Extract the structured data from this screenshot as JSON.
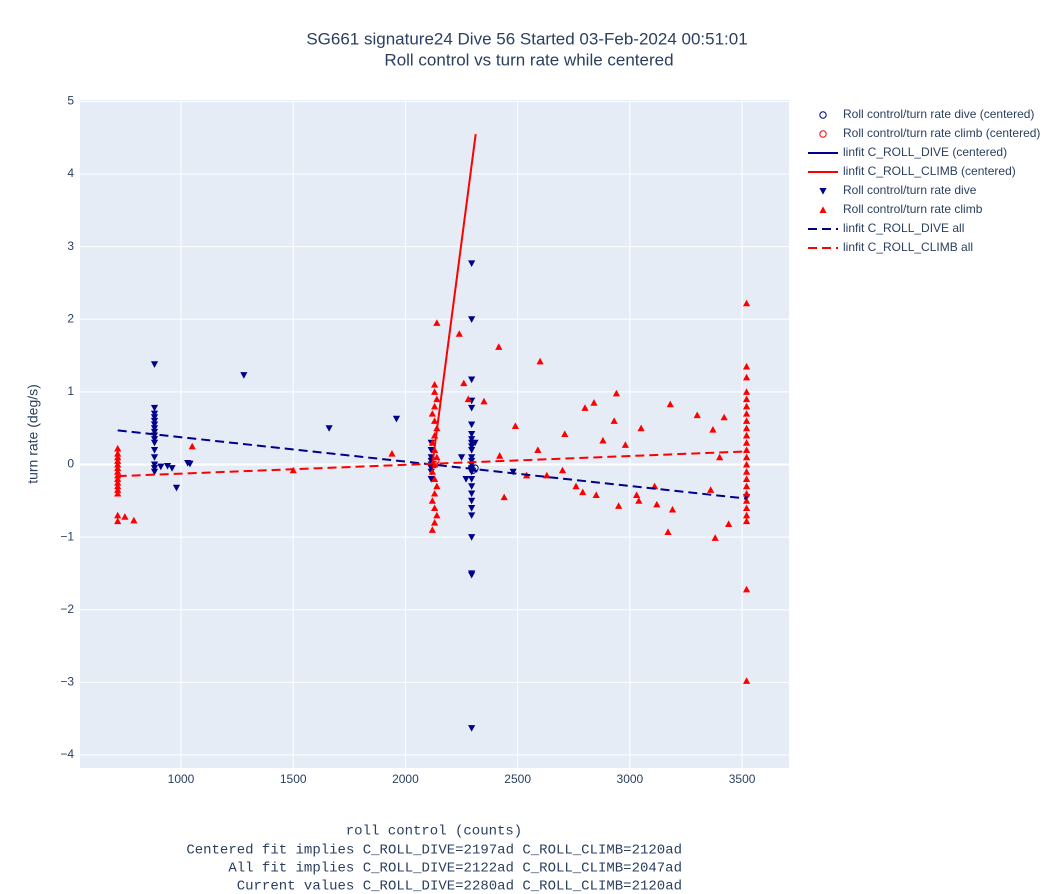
{
  "chart_data": {
    "type": "scatter",
    "title": "SG661 signature24 Dive 56 Started 03-Feb-2024 00:51:01",
    "subtitle": "Roll control vs turn rate while centered",
    "xlabel": "roll control (counts)",
    "notes": [
      "Centered fit implies C_ROLL_DIVE=2197ad C_ROLL_CLIMB=2120ad",
      "All fit implies C_ROLL_DIVE=2122ad C_ROLL_CLIMB=2047ad",
      "Current values C_ROLL_DIVE=2280ad C_ROLL_CLIMB=2120ad"
    ],
    "ylabel": "turn rate (deg/s)",
    "xlim": [
      550,
      3709
    ],
    "ylim": [
      -4.18,
      5.02
    ],
    "xticks": [
      1000,
      1500,
      2000,
      2500,
      3000,
      3500
    ],
    "yticks": [
      {
        "value": -4,
        "label": "−4"
      },
      {
        "value": -3,
        "label": "−3"
      },
      {
        "value": -2,
        "label": "−2"
      },
      {
        "value": -1,
        "label": "−1"
      },
      0,
      1,
      2,
      3,
      4,
      5
    ],
    "grid": true,
    "legend": "right",
    "series": [
      {
        "name": "Roll control/turn rate dive (centered)",
        "color": "#00008b",
        "mode": "markers",
        "symbol": "circle-open",
        "x": [
          2300,
          2310
        ],
        "values": [
          -0.08,
          -0.05
        ]
      },
      {
        "name": "Roll control/turn rate climb (centered)",
        "color": "#ff0000",
        "mode": "markers",
        "symbol": "circle-open",
        "x": [
          2130,
          2135
        ],
        "values": [
          0.0,
          0.05
        ]
      },
      {
        "name": "linfit C_ROLL_DIVE (centered)",
        "color": "#00008b",
        "mode": "lines",
        "dash": "solid",
        "x": [
          2280,
          2320
        ],
        "values": [
          -0.03,
          -0.1
        ]
      },
      {
        "name": "linfit C_ROLL_CLIMB (centered)",
        "color": "#ff0000",
        "mode": "lines",
        "dash": "solid",
        "x": [
          2120,
          2313
        ],
        "values": [
          0,
          4.55
        ]
      },
      {
        "name": "Roll control/turn rate dive",
        "color": "#00008b",
        "mode": "markers",
        "symbol": "triangle-down",
        "x": [
          882,
          882,
          882,
          882,
          882,
          882,
          882,
          882,
          882,
          882,
          882,
          882,
          882,
          882,
          882,
          882,
          1280,
          1660,
          1960,
          940,
          960,
          980,
          1030,
          1040,
          910,
          2115,
          2115,
          2115,
          2115,
          2115,
          2115,
          2115,
          2115,
          2295,
          2295,
          2295,
          2295,
          2295,
          2295,
          2295,
          2295,
          2295,
          2295,
          2295,
          2295,
          2295,
          2295,
          2295,
          2295,
          2295,
          2295,
          2295,
          2295,
          2295,
          2295,
          2295,
          2295,
          2295,
          2295,
          2250,
          2270,
          2310,
          2480,
          3520
        ],
        "values": [
          1.38,
          0.78,
          0.7,
          0.65,
          0.6,
          0.55,
          0.5,
          0.45,
          0.4,
          0.35,
          0.3,
          0.2,
          0.1,
          0.0,
          -0.05,
          -0.1,
          1.23,
          0.5,
          0.63,
          -0.02,
          -0.05,
          -0.32,
          0.02,
          0.01,
          -0.03,
          0.3,
          0.2,
          0.1,
          0.05,
          0,
          -0.05,
          -0.1,
          -0.2,
          2.77,
          2.0,
          1.17,
          0.88,
          0.78,
          0.55,
          0.42,
          0.35,
          0.3,
          0.25,
          0.2,
          0.1,
          0.05,
          0,
          -0.05,
          -0.1,
          -0.2,
          -0.3,
          -0.4,
          -0.5,
          -0.6,
          -0.7,
          -1.0,
          -1.5,
          -1.52,
          -3.63,
          0.1,
          -0.2,
          0.3,
          -0.1,
          -0.45
        ]
      },
      {
        "name": "Roll control/turn rate climb",
        "color": "#ff0000",
        "mode": "markers",
        "symbol": "triangle-up",
        "x": [
          718,
          718,
          718,
          718,
          718,
          718,
          718,
          718,
          718,
          718,
          718,
          718,
          718,
          718,
          718,
          750,
          790,
          1050,
          1500,
          1940,
          2140,
          2130,
          2130,
          2140,
          2130,
          2120,
          2130,
          2140,
          2130,
          2120,
          2130,
          2140,
          2130,
          2120,
          2130,
          2140,
          2130,
          2120,
          2130,
          2140,
          2130,
          2120,
          2240,
          2260,
          2416,
          2350,
          2280,
          2440,
          2420,
          2490,
          2540,
          2590,
          2600,
          2630,
          2710,
          2700,
          2760,
          2790,
          2800,
          2840,
          2850,
          2880,
          2940,
          2950,
          2930,
          2980,
          3030,
          3050,
          3040,
          3110,
          3120,
          3170,
          3180,
          3190,
          3300,
          3370,
          3380,
          3400,
          3420,
          3440,
          3360,
          3520,
          3520,
          3520,
          3520,
          3520,
          3520,
          3520,
          3520,
          3520,
          3520,
          3520,
          3520,
          3520,
          3520,
          3520,
          3520,
          3520,
          3520,
          3520,
          3520,
          3520,
          3520,
          3520,
          3520
        ],
        "values": [
          0.22,
          0.15,
          0.1,
          0.05,
          0,
          -0.05,
          -0.1,
          -0.15,
          -0.2,
          -0.25,
          -0.3,
          -0.35,
          -0.4,
          -0.7,
          -0.78,
          -0.72,
          -0.77,
          0.25,
          -0.08,
          0.15,
          1.95,
          1.1,
          1.0,
          0.9,
          0.8,
          0.7,
          0.6,
          0.5,
          0.4,
          0.3,
          0.2,
          0.1,
          0,
          -0.1,
          -0.2,
          -0.3,
          -0.4,
          -0.5,
          -0.6,
          -0.7,
          -0.8,
          -0.9,
          1.8,
          1.12,
          1.62,
          0.87,
          0.9,
          -0.45,
          0.12,
          0.53,
          -0.15,
          0.2,
          1.42,
          -0.15,
          0.42,
          -0.08,
          -0.3,
          -0.38,
          0.78,
          0.85,
          -0.42,
          0.33,
          0.98,
          -0.57,
          0.6,
          0.27,
          -0.42,
          0.5,
          -0.5,
          -0.3,
          -0.55,
          -0.93,
          0.83,
          -0.62,
          0.68,
          0.48,
          -1.01,
          0.1,
          0.65,
          -0.82,
          -0.35,
          2.22,
          1.35,
          1.2,
          1.0,
          0.9,
          0.8,
          0.7,
          0.6,
          0.5,
          0.4,
          0.3,
          0.2,
          0.1,
          0,
          -0.1,
          -0.2,
          -0.3,
          -0.4,
          -0.5,
          -0.6,
          -0.7,
          -0.78,
          -1.72,
          -2.98
        ]
      },
      {
        "name": "linfit C_ROLL_DIVE all",
        "color": "#00008b",
        "mode": "lines",
        "dash": "dash",
        "x": [
          718,
          3520
        ],
        "values": [
          0.47,
          -0.47
        ]
      },
      {
        "name": "linfit C_ROLL_CLIMB all",
        "color": "#ff0000",
        "mode": "lines",
        "dash": "dash",
        "x": [
          718,
          3520
        ],
        "values": [
          -0.16,
          0.18
        ]
      }
    ]
  }
}
